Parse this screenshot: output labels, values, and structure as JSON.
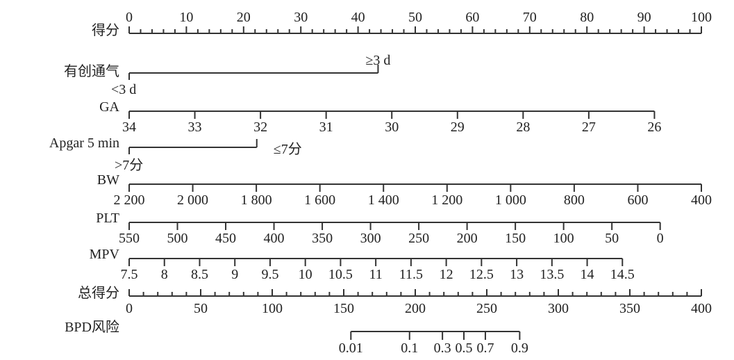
{
  "chart_data": {
    "type": "nomogram",
    "points_range": [
      0,
      100
    ],
    "total_points_range": [
      0,
      400
    ],
    "color": "#333333",
    "rows": [
      {
        "label": "得分",
        "kind": "points",
        "ticks": [
          0,
          10,
          20,
          30,
          40,
          50,
          60,
          70,
          80,
          90,
          100
        ],
        "minor_step": 2,
        "tick_dir": "up"
      },
      {
        "label": "有创通气",
        "kind": "categorical",
        "levels": [
          {
            "text": "<3 d",
            "points": 0
          },
          {
            "text": "≥3 d",
            "points": 43.5
          }
        ]
      },
      {
        "label": "GA",
        "kind": "continuous",
        "ticks": [
          34,
          33,
          32,
          31,
          30,
          29,
          28,
          27,
          26
        ],
        "points_at_first": 0,
        "points_at_last": 91.8
      },
      {
        "label": "Apgar 5 min",
        "kind": "categorical",
        "levels": [
          {
            "text": ">7分",
            "points": 0
          },
          {
            "text": "≤7分",
            "points": 22.3
          }
        ]
      },
      {
        "label": "BW",
        "kind": "continuous",
        "ticks": [
          "2 200",
          "2 000",
          "1 800",
          "1 600",
          "1 400",
          "1 200",
          "1 000",
          "800",
          "600",
          "400"
        ],
        "tick_values": [
          2200,
          2000,
          1800,
          1600,
          1400,
          1200,
          1000,
          800,
          600,
          400
        ],
        "points_at_first": 0,
        "points_at_last": 100
      },
      {
        "label": "PLT",
        "kind": "continuous",
        "ticks": [
          "550",
          "500",
          "450",
          "400",
          "350",
          "300",
          "250",
          "200",
          "150",
          "100",
          "50",
          "0"
        ],
        "tick_values": [
          550,
          500,
          450,
          400,
          350,
          300,
          250,
          200,
          150,
          100,
          50,
          0
        ],
        "points_at_first": 0,
        "points_at_last": 92.8
      },
      {
        "label": "MPV",
        "kind": "continuous",
        "ticks": [
          "7.5",
          "8",
          "8.5",
          "9",
          "9.5",
          "10",
          "10.5",
          "11",
          "11.5",
          "12",
          "12.5",
          "13",
          "13.5",
          "14",
          "14.5"
        ],
        "tick_values": [
          7.5,
          8,
          8.5,
          9,
          9.5,
          10,
          10.5,
          11,
          11.5,
          12,
          12.5,
          13,
          13.5,
          14,
          14.5
        ],
        "points_at_first": 0,
        "points_at_last": 86.2
      },
      {
        "label": "总得分",
        "kind": "total",
        "ticks": [
          0,
          50,
          100,
          150,
          200,
          250,
          300,
          350,
          400
        ],
        "minor_step": 10,
        "tick_dir": "up"
      },
      {
        "label": "BPD风险",
        "kind": "risk",
        "ticks": [
          "0.01",
          "0.1",
          "0.3",
          "0.5",
          "0.7",
          "0.9"
        ],
        "total_points": [
          155,
          196,
          219,
          234,
          249,
          273
        ]
      }
    ]
  }
}
